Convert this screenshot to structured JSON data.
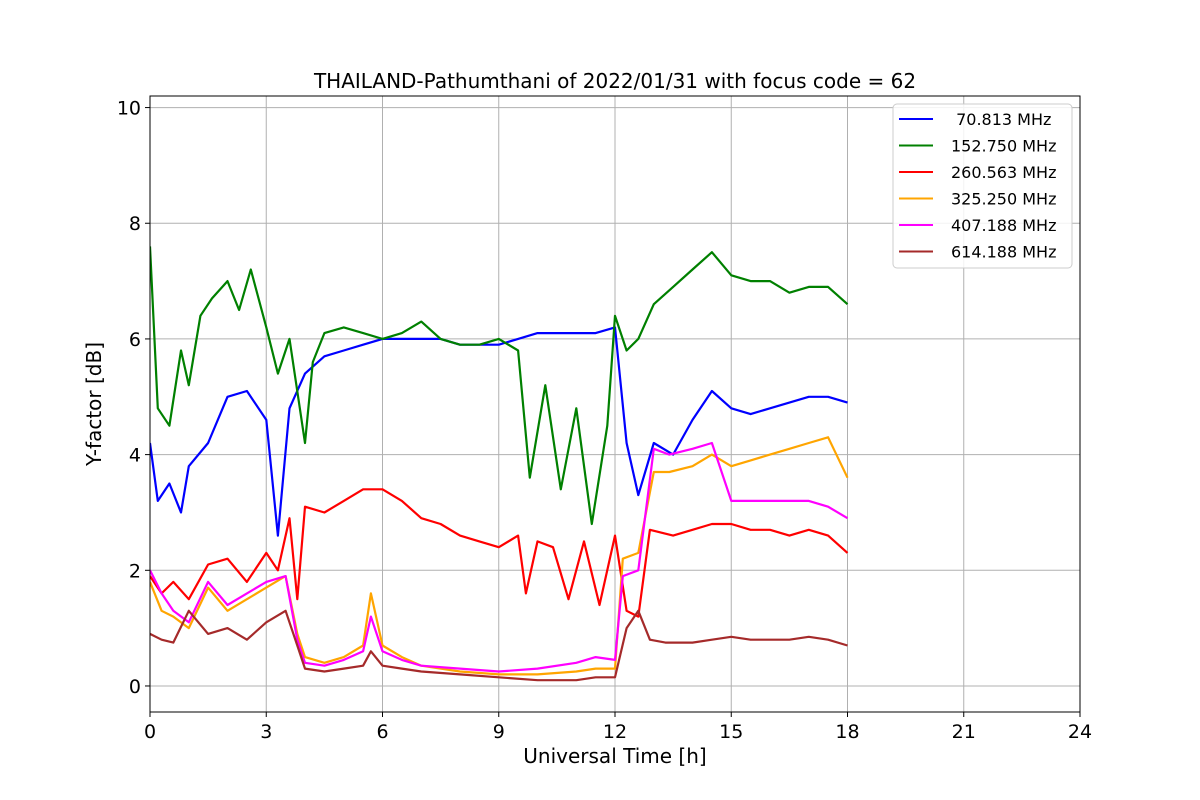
{
  "chart_data": {
    "type": "line",
    "title": "THAILAND-Pathumthani of 2022/01/31 with focus code = 62",
    "xlabel": "Universal Time [h]",
    "ylabel": "Y-factor [dB]",
    "xlim": [
      0,
      24
    ],
    "ylim": [
      -0.45,
      10.2
    ],
    "xticks": [
      0,
      3,
      6,
      9,
      12,
      15,
      18,
      21,
      24
    ],
    "xtick_labels": [
      "0",
      "3",
      "6",
      "9",
      "12",
      "15",
      "18",
      "21",
      "24"
    ],
    "yticks": [
      0,
      2,
      4,
      6,
      8,
      10
    ],
    "ytick_labels": [
      "0",
      "2",
      "4",
      "6",
      "8",
      "10"
    ],
    "grid": true,
    "legend_position": "top-right",
    "series": [
      {
        "name": " 70.813 MHz",
        "color": "#0000ff",
        "x": [
          0,
          0.2,
          0.5,
          0.8,
          1.0,
          1.5,
          2.0,
          2.5,
          3.0,
          3.3,
          3.6,
          4.0,
          4.5,
          5.0,
          5.5,
          6.0,
          6.5,
          7.0,
          7.5,
          8.0,
          8.5,
          9.0,
          9.5,
          10.0,
          10.5,
          11.0,
          11.5,
          12.0,
          12.3,
          12.6,
          13.0,
          13.5,
          14.0,
          14.5,
          15.0,
          15.5,
          16.0,
          16.5,
          17.0,
          17.5,
          18.0
        ],
        "values": [
          4.2,
          3.2,
          3.5,
          3.0,
          3.8,
          4.2,
          5.0,
          5.1,
          4.6,
          2.6,
          4.8,
          5.4,
          5.7,
          5.8,
          5.9,
          6.0,
          6.0,
          6.0,
          6.0,
          5.9,
          5.9,
          5.9,
          6.0,
          6.1,
          6.1,
          6.1,
          6.1,
          6.2,
          4.2,
          3.3,
          4.2,
          4.0,
          4.6,
          5.1,
          4.8,
          4.7,
          4.8,
          4.9,
          5.0,
          5.0,
          4.9
        ]
      },
      {
        "name": "152.750 MHz",
        "color": "#008000",
        "x": [
          0,
          0.2,
          0.5,
          0.8,
          1.0,
          1.3,
          1.6,
          2.0,
          2.3,
          2.6,
          3.0,
          3.3,
          3.6,
          4.0,
          4.2,
          4.5,
          5.0,
          5.5,
          6.0,
          6.5,
          7.0,
          7.5,
          8.0,
          8.5,
          9.0,
          9.5,
          9.8,
          10.2,
          10.6,
          11.0,
          11.4,
          11.8,
          12.0,
          12.3,
          12.6,
          13.0,
          13.5,
          14.0,
          14.5,
          15.0,
          15.5,
          16.0,
          16.5,
          17.0,
          17.5,
          18.0
        ],
        "values": [
          7.6,
          4.8,
          4.5,
          5.8,
          5.2,
          6.4,
          6.7,
          7.0,
          6.5,
          7.2,
          6.2,
          5.4,
          6.0,
          4.2,
          5.6,
          6.1,
          6.2,
          6.1,
          6.0,
          6.1,
          6.3,
          6.0,
          5.9,
          5.9,
          6.0,
          5.8,
          3.6,
          5.2,
          3.4,
          4.8,
          2.8,
          4.5,
          6.4,
          5.8,
          6.0,
          6.6,
          6.9,
          7.2,
          7.5,
          7.1,
          7.0,
          7.0,
          6.8,
          6.9,
          6.9,
          6.6
        ]
      },
      {
        "name": "260.563 MHz",
        "color": "#ff0000",
        "x": [
          0,
          0.3,
          0.6,
          1.0,
          1.5,
          2.0,
          2.5,
          3.0,
          3.3,
          3.6,
          3.8,
          4.0,
          4.5,
          5.0,
          5.5,
          6.0,
          6.5,
          7.0,
          7.5,
          8.0,
          8.5,
          9.0,
          9.5,
          9.7,
          10.0,
          10.4,
          10.8,
          11.2,
          11.6,
          12.0,
          12.3,
          12.6,
          12.9,
          13.5,
          14.0,
          14.5,
          15.0,
          15.5,
          16.0,
          16.5,
          17.0,
          17.5,
          18.0
        ],
        "values": [
          1.9,
          1.6,
          1.8,
          1.5,
          2.1,
          2.2,
          1.8,
          2.3,
          2.0,
          2.9,
          1.5,
          3.1,
          3.0,
          3.2,
          3.4,
          3.4,
          3.2,
          2.9,
          2.8,
          2.6,
          2.5,
          2.4,
          2.6,
          1.6,
          2.5,
          2.4,
          1.5,
          2.5,
          1.4,
          2.6,
          1.3,
          1.2,
          2.7,
          2.6,
          2.7,
          2.8,
          2.8,
          2.7,
          2.7,
          2.6,
          2.7,
          2.6,
          2.3
        ]
      },
      {
        "name": "325.250 MHz",
        "color": "#ffa500",
        "x": [
          0,
          0.3,
          0.6,
          1.0,
          1.5,
          2.0,
          2.5,
          3.0,
          3.5,
          3.8,
          4.0,
          4.5,
          5.0,
          5.5,
          5.7,
          6.0,
          6.5,
          7.0,
          8.0,
          9.0,
          10.0,
          11.0,
          11.5,
          12.0,
          12.2,
          12.6,
          13.0,
          13.4,
          14.0,
          14.5,
          15.0,
          15.5,
          16.0,
          16.5,
          17.0,
          17.5,
          18.0
        ],
        "values": [
          1.8,
          1.3,
          1.2,
          1.0,
          1.7,
          1.3,
          1.5,
          1.7,
          1.9,
          0.9,
          0.5,
          0.4,
          0.5,
          0.7,
          1.6,
          0.7,
          0.5,
          0.35,
          0.25,
          0.2,
          0.2,
          0.25,
          0.3,
          0.3,
          2.2,
          2.3,
          3.7,
          3.7,
          3.8,
          4.0,
          3.8,
          3.9,
          4.0,
          4.1,
          4.2,
          4.3,
          3.6
        ]
      },
      {
        "name": "407.188 MHz",
        "color": "#ff00ff",
        "x": [
          0,
          0.3,
          0.6,
          1.0,
          1.5,
          2.0,
          2.5,
          3.0,
          3.5,
          3.8,
          4.0,
          4.5,
          5.0,
          5.5,
          5.7,
          6.0,
          6.5,
          7.0,
          8.0,
          9.0,
          10.0,
          11.0,
          11.5,
          12.0,
          12.2,
          12.6,
          13.0,
          13.4,
          14.0,
          14.5,
          15.0,
          15.5,
          16.0,
          16.5,
          17.0,
          17.5,
          18.0
        ],
        "values": [
          2.0,
          1.6,
          1.3,
          1.1,
          1.8,
          1.4,
          1.6,
          1.8,
          1.9,
          0.8,
          0.4,
          0.35,
          0.45,
          0.6,
          1.2,
          0.6,
          0.45,
          0.35,
          0.3,
          0.25,
          0.3,
          0.4,
          0.5,
          0.45,
          1.9,
          2.0,
          4.1,
          4.0,
          4.1,
          4.2,
          3.2,
          3.2,
          3.2,
          3.2,
          3.2,
          3.1,
          2.9
        ]
      },
      {
        "name": "614.188 MHz",
        "color": "#a52a2a",
        "x": [
          0,
          0.3,
          0.6,
          1.0,
          1.5,
          2.0,
          2.5,
          3.0,
          3.5,
          3.8,
          4.0,
          4.5,
          5.0,
          5.5,
          5.7,
          6.0,
          6.5,
          7.0,
          8.0,
          9.0,
          10.0,
          11.0,
          11.5,
          12.0,
          12.3,
          12.6,
          12.9,
          13.3,
          14.0,
          14.5,
          15.0,
          15.5,
          16.0,
          16.5,
          17.0,
          17.5,
          18.0
        ],
        "values": [
          0.9,
          0.8,
          0.75,
          1.3,
          0.9,
          1.0,
          0.8,
          1.1,
          1.3,
          0.7,
          0.3,
          0.25,
          0.3,
          0.35,
          0.6,
          0.35,
          0.3,
          0.25,
          0.2,
          0.15,
          0.1,
          0.1,
          0.15,
          0.15,
          1.0,
          1.3,
          0.8,
          0.75,
          0.75,
          0.8,
          0.85,
          0.8,
          0.8,
          0.8,
          0.85,
          0.8,
          0.7
        ]
      }
    ]
  }
}
